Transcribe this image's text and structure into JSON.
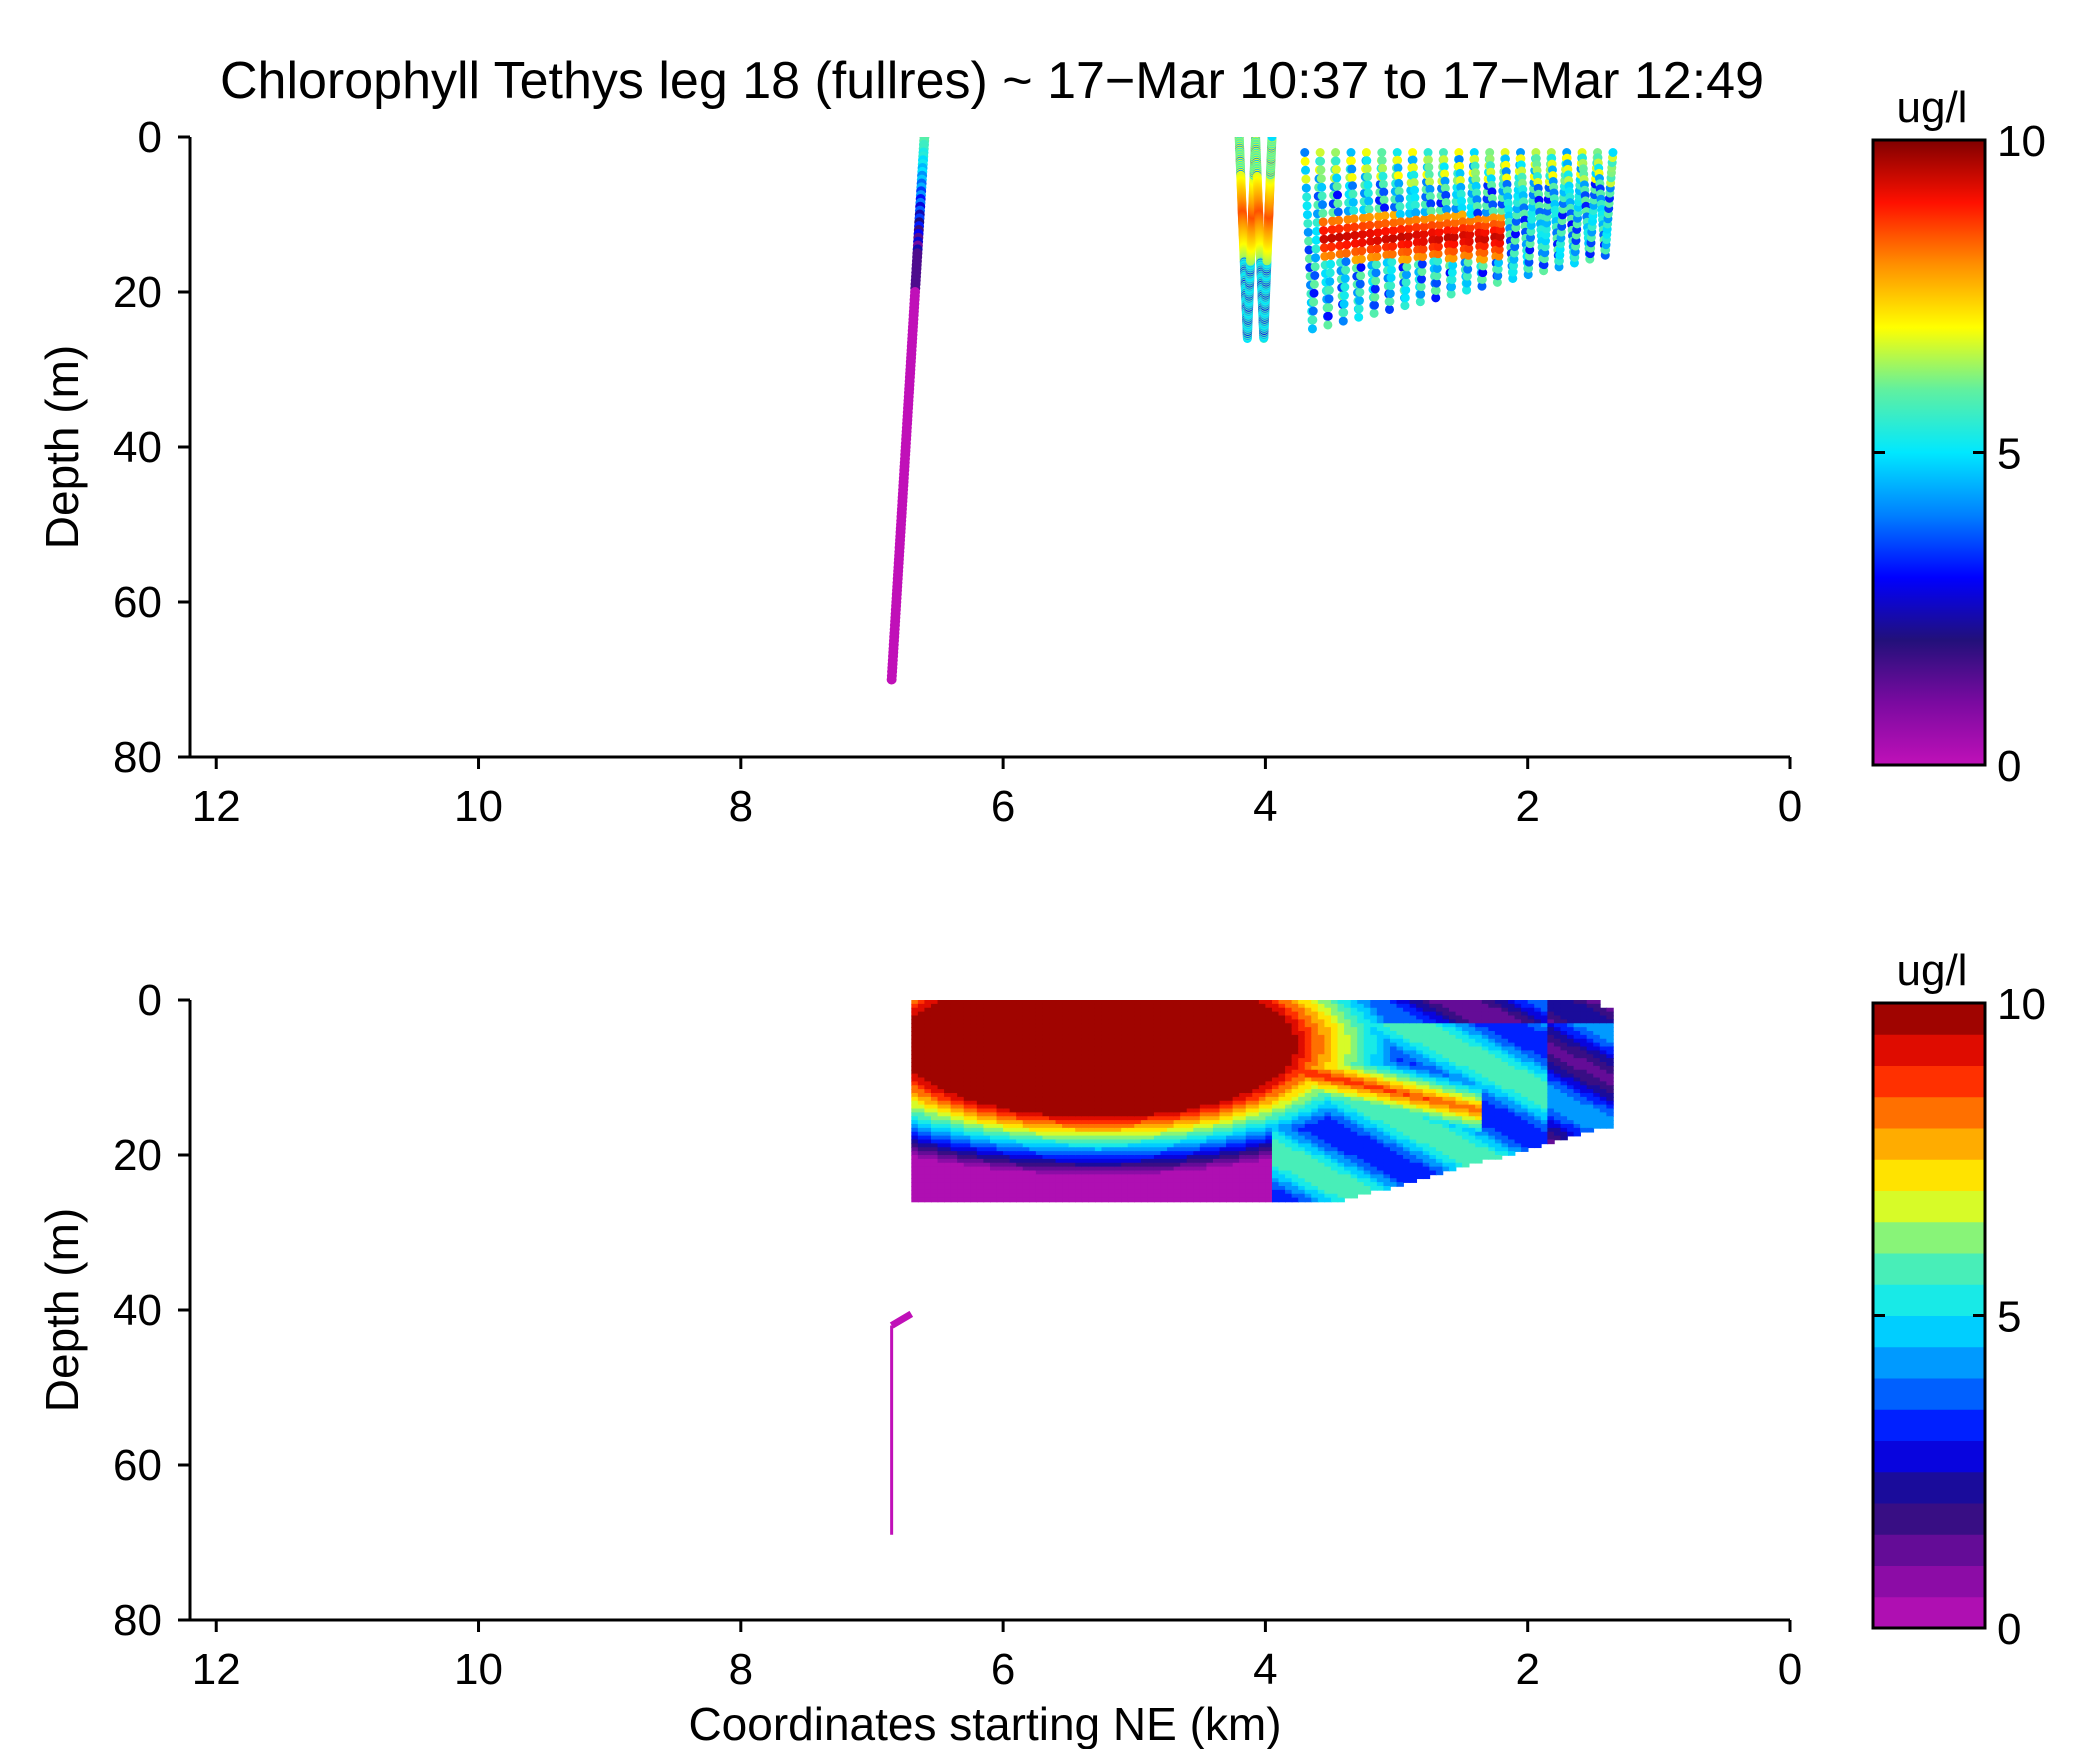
{
  "figure": {
    "title": "Chlorophyll Tethys leg 18 (fullres) ~ 17−Mar 10:37 to 17−Mar 12:49",
    "xlabel": "Coordinates starting NE (km)"
  },
  "chart_data": [
    {
      "type": "scatter",
      "ylabel": "Depth (m)",
      "xlim": [
        12.2,
        0
      ],
      "ylim": [
        0,
        80
      ],
      "x_ticks": [
        "12",
        "10",
        "8",
        "6",
        "4",
        "2",
        "0"
      ],
      "y_ticks": [
        "0",
        "20",
        "40",
        "60",
        "80"
      ],
      "colorbar": {
        "label": "ug/l",
        "range": [
          0,
          10
        ],
        "ticks": [
          "0",
          "5",
          "10"
        ],
        "colormap": "jet-magenta",
        "continuous": true
      },
      "descent_profile": {
        "x_top": 6.6,
        "depth_top": 0,
        "x_bottom": 6.85,
        "depth_bottom": 70,
        "surface_chl": 6,
        "deep_chl": 0
      },
      "yoyo_segments": [
        {
          "x_start": 4.2,
          "x_end": 3.95,
          "depth_min": 0,
          "depth_max": 26,
          "cycles": 2
        },
        {
          "x_start": 3.7,
          "x_end": 1.35,
          "depth_min": 2,
          "depth_max_start": 25,
          "depth_max_end": 15,
          "cycles": 20
        }
      ],
      "chl_max_layer": {
        "x_from": 3.6,
        "x_to": 2.2,
        "depth": 13,
        "peak_chl": 9.5
      }
    },
    {
      "type": "heatmap",
      "ylabel": "Depth (m)",
      "xlim": [
        12.2,
        0
      ],
      "ylim": [
        0,
        80
      ],
      "x_ticks": [
        "12",
        "10",
        "8",
        "6",
        "4",
        "2",
        "0"
      ],
      "y_ticks": [
        "0",
        "20",
        "40",
        "60",
        "80"
      ],
      "colorbar": {
        "label": "ug/l",
        "range": [
          0,
          10
        ],
        "ticks": [
          "0",
          "5",
          "10"
        ],
        "levels": 20,
        "continuous": false
      },
      "interpolated_region": {
        "x_west": 6.7,
        "x_east": 1.4,
        "top_depth": 0,
        "bottom_depth_west": 26,
        "bottom_depth_east": 16
      },
      "high_core": {
        "x_center": 5.3,
        "depth_center": 5.5,
        "x_radius": 1.45,
        "depth_radius": 9
      },
      "filament": {
        "x_from": 4.0,
        "x_to": 2.4,
        "depth_from": 8,
        "depth_to": 14
      },
      "deep_trace": {
        "x": 6.85,
        "depth_top": 42,
        "depth_bottom": 69,
        "value": 0
      }
    }
  ]
}
